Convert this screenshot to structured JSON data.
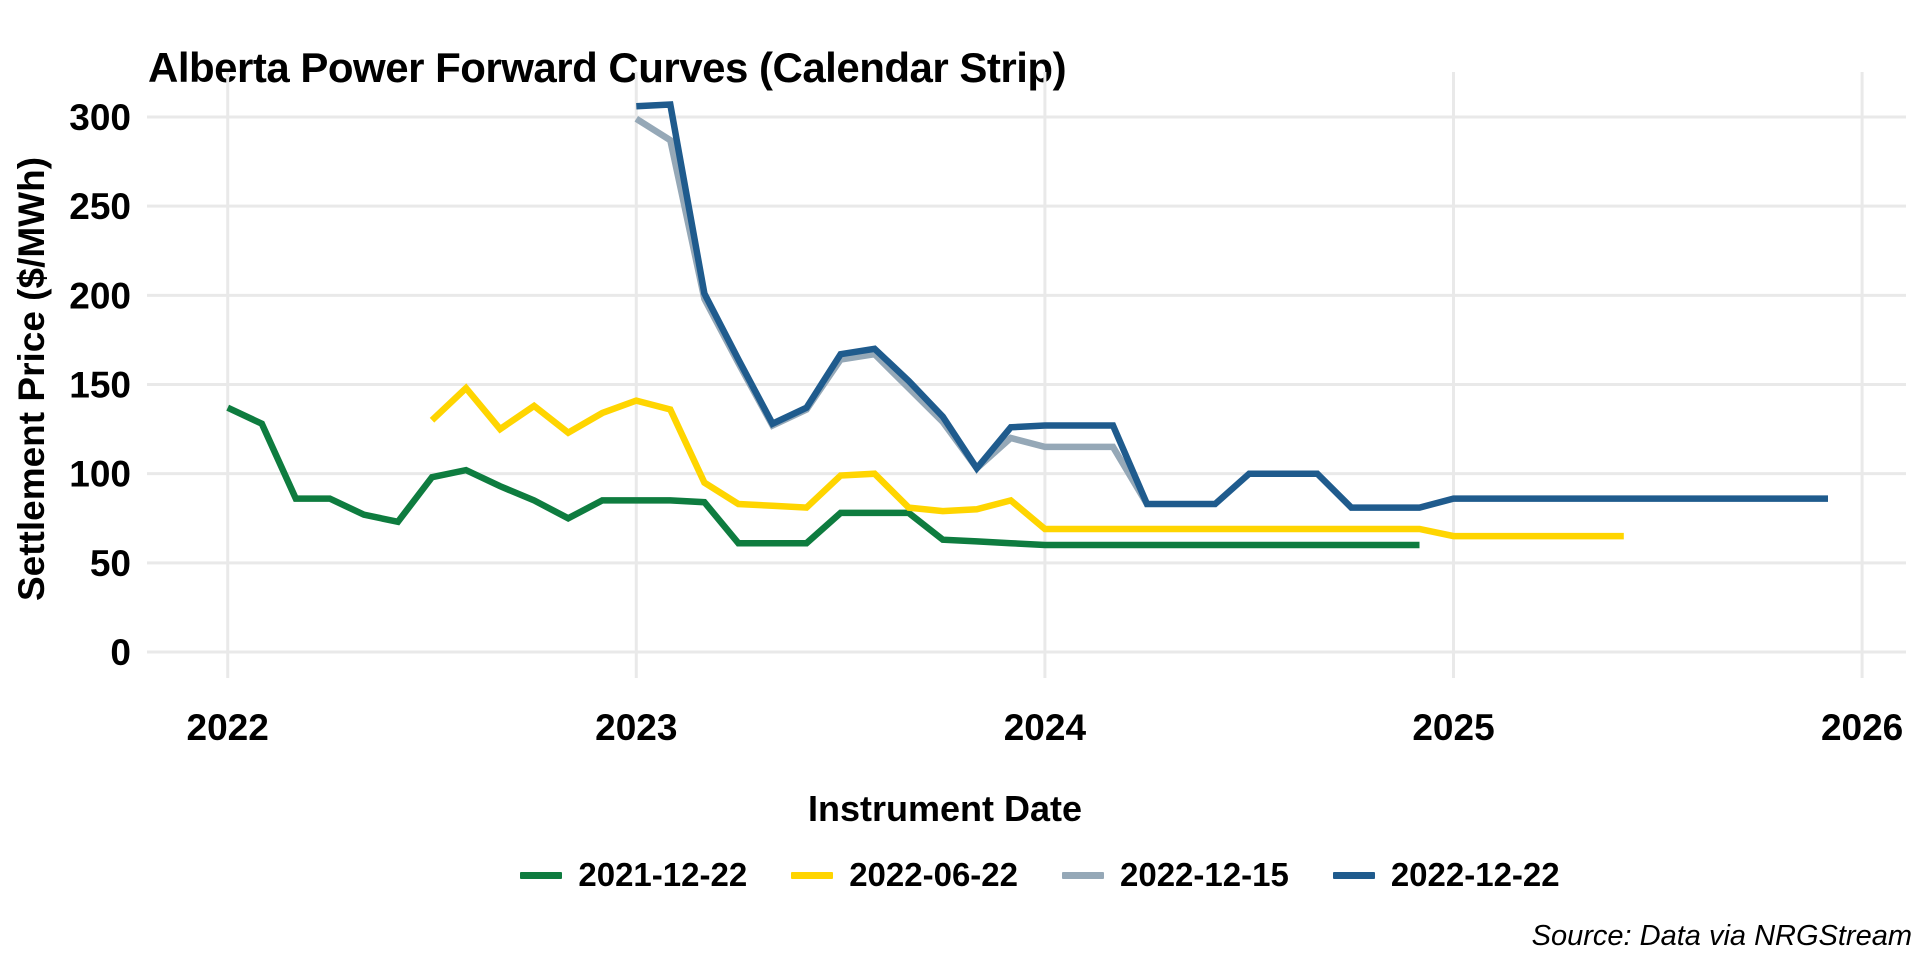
{
  "title": "Alberta Power Forward Curves (Calendar Strip)",
  "source_note": "Source: Data via NRGStream",
  "chart_data": {
    "type": "line",
    "title": "Alberta Power Forward Curves (Calendar Strip)",
    "xlabel": "Instrument Date",
    "ylabel": "Settlement Price ($/MWh)",
    "x_unit": "month",
    "x_tick_labels": [
      "2022",
      "2023",
      "2024",
      "2025",
      "2026"
    ],
    "y_ticks": [
      0,
      50,
      100,
      150,
      200,
      250,
      300
    ],
    "ylim": [
      0,
      325
    ],
    "grid": "major-only-light-gray",
    "legend_position": "bottom",
    "background": "#ffffff",
    "gridline_color": "#e9e9e9",
    "series": [
      {
        "name": "2021-12-22",
        "color": "#0e7c3f",
        "points": [
          [
            "2022-01",
            137
          ],
          [
            "2022-02",
            128
          ],
          [
            "2022-03",
            86
          ],
          [
            "2022-04",
            86
          ],
          [
            "2022-05",
            77
          ],
          [
            "2022-06",
            73
          ],
          [
            "2022-07",
            98
          ],
          [
            "2022-08",
            102
          ],
          [
            "2022-09",
            93
          ],
          [
            "2022-10",
            85
          ],
          [
            "2022-11",
            75
          ],
          [
            "2022-12",
            85
          ],
          [
            "2023-01",
            85
          ],
          [
            "2023-02",
            85
          ],
          [
            "2023-03",
            84
          ],
          [
            "2023-04",
            61
          ],
          [
            "2023-05",
            61
          ],
          [
            "2023-06",
            61
          ],
          [
            "2023-07",
            78
          ],
          [
            "2023-08",
            78
          ],
          [
            "2023-09",
            78
          ],
          [
            "2023-10",
            63
          ],
          [
            "2023-11",
            62
          ],
          [
            "2023-12",
            61
          ],
          [
            "2024-01",
            60
          ],
          [
            "2024-02",
            60
          ],
          [
            "2024-03",
            60
          ],
          [
            "2024-04",
            60
          ],
          [
            "2024-05",
            60
          ],
          [
            "2024-06",
            60
          ],
          [
            "2024-07",
            60
          ],
          [
            "2024-08",
            60
          ],
          [
            "2024-09",
            60
          ],
          [
            "2024-10",
            60
          ],
          [
            "2024-11",
            60
          ],
          [
            "2024-12",
            60
          ]
        ]
      },
      {
        "name": "2022-06-22",
        "color": "#ffd500",
        "points": [
          [
            "2022-07",
            130
          ],
          [
            "2022-08",
            148
          ],
          [
            "2022-09",
            125
          ],
          [
            "2022-10",
            138
          ],
          [
            "2022-11",
            123
          ],
          [
            "2022-12",
            134
          ],
          [
            "2023-01",
            141
          ],
          [
            "2023-02",
            136
          ],
          [
            "2023-03",
            95
          ],
          [
            "2023-04",
            83
          ],
          [
            "2023-05",
            82
          ],
          [
            "2023-06",
            81
          ],
          [
            "2023-07",
            99
          ],
          [
            "2023-08",
            100
          ],
          [
            "2023-09",
            81
          ],
          [
            "2023-10",
            79
          ],
          [
            "2023-11",
            80
          ],
          [
            "2023-12",
            85
          ],
          [
            "2024-01",
            69
          ],
          [
            "2024-02",
            69
          ],
          [
            "2024-03",
            69
          ],
          [
            "2024-04",
            69
          ],
          [
            "2024-05",
            69
          ],
          [
            "2024-06",
            69
          ],
          [
            "2024-07",
            69
          ],
          [
            "2024-08",
            69
          ],
          [
            "2024-09",
            69
          ],
          [
            "2024-10",
            69
          ],
          [
            "2024-11",
            69
          ],
          [
            "2024-12",
            69
          ],
          [
            "2025-01",
            65
          ],
          [
            "2025-02",
            65
          ],
          [
            "2025-03",
            65
          ],
          [
            "2025-04",
            65
          ],
          [
            "2025-05",
            65
          ],
          [
            "2025-06",
            65
          ]
        ]
      },
      {
        "name": "2022-12-15",
        "color": "#95a8b7",
        "points": [
          [
            "2023-01",
            299
          ],
          [
            "2023-02",
            287
          ],
          [
            "2023-03",
            198
          ],
          [
            "2023-04",
            162
          ],
          [
            "2023-05",
            127
          ],
          [
            "2023-06",
            136
          ],
          [
            "2023-07",
            164
          ],
          [
            "2023-08",
            167
          ],
          [
            "2023-09",
            148
          ],
          [
            "2023-10",
            129
          ],
          [
            "2023-11",
            103
          ],
          [
            "2023-12",
            120
          ],
          [
            "2024-01",
            115
          ],
          [
            "2024-02",
            115
          ],
          [
            "2024-03",
            115
          ],
          [
            "2024-04",
            83
          ]
        ]
      },
      {
        "name": "2022-12-22",
        "color": "#1f5b8d",
        "points": [
          [
            "2023-01",
            306
          ],
          [
            "2023-02",
            307
          ],
          [
            "2023-03",
            201
          ],
          [
            "2023-04",
            164
          ],
          [
            "2023-05",
            128
          ],
          [
            "2023-06",
            137
          ],
          [
            "2023-07",
            167
          ],
          [
            "2023-08",
            170
          ],
          [
            "2023-09",
            152
          ],
          [
            "2023-10",
            132
          ],
          [
            "2023-11",
            103
          ],
          [
            "2023-12",
            126
          ],
          [
            "2024-01",
            127
          ],
          [
            "2024-02",
            127
          ],
          [
            "2024-03",
            127
          ],
          [
            "2024-04",
            83
          ],
          [
            "2024-05",
            83
          ],
          [
            "2024-06",
            83
          ],
          [
            "2024-07",
            100
          ],
          [
            "2024-08",
            100
          ],
          [
            "2024-09",
            100
          ],
          [
            "2024-10",
            81
          ],
          [
            "2024-11",
            81
          ],
          [
            "2024-12",
            81
          ],
          [
            "2025-01",
            86
          ],
          [
            "2025-02",
            86
          ],
          [
            "2025-03",
            86
          ],
          [
            "2025-04",
            86
          ],
          [
            "2025-05",
            86
          ],
          [
            "2025-06",
            86
          ],
          [
            "2025-07",
            86
          ],
          [
            "2025-08",
            86
          ],
          [
            "2025-09",
            86
          ],
          [
            "2025-10",
            86
          ],
          [
            "2025-11",
            86
          ],
          [
            "2025-12",
            86
          ]
        ]
      }
    ]
  }
}
